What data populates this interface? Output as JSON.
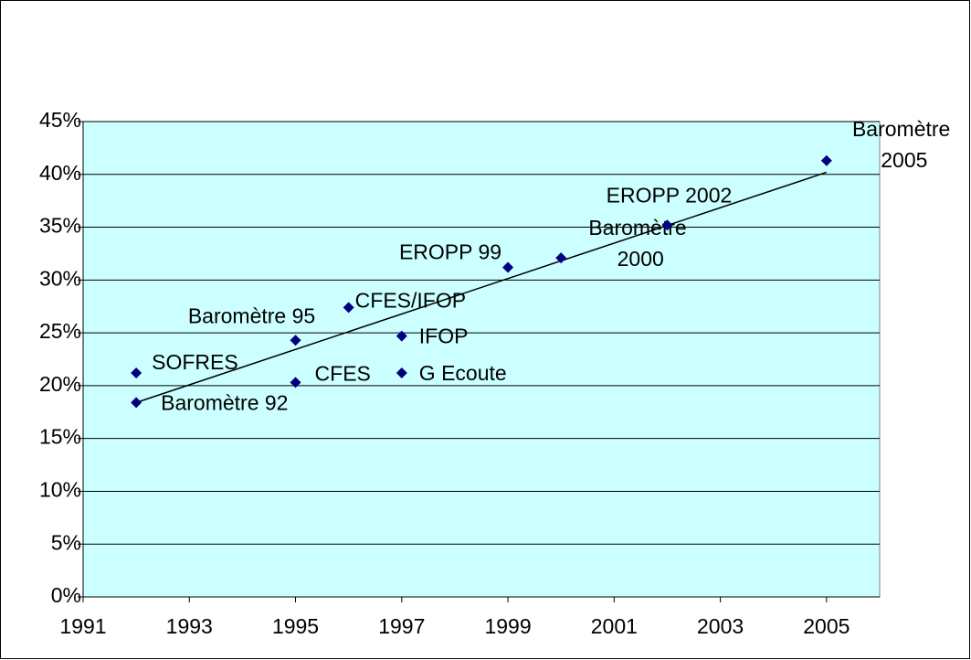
{
  "chart_data": {
    "type": "scatter",
    "x": [
      1992,
      1992,
      1995,
      1995,
      1996,
      1997,
      1997,
      1999,
      2000,
      2002,
      2005
    ],
    "values": [
      21.2,
      18.4,
      24.3,
      20.3,
      27.4,
      24.7,
      21.2,
      31.2,
      32.1,
      35.2,
      41.3
    ],
    "labels": [
      "SOFRES",
      "Baromètre 92",
      "Baromètre 95",
      "CFES",
      "CFES/IFOP",
      "IFOP",
      "G Ecoute",
      "EROPP 99",
      "Baromètre 2000",
      "EROPP 2002",
      "Baromètre 2005"
    ],
    "color": "#000080",
    "trendline": {
      "x": [
        1992,
        2005
      ],
      "values": [
        18.4,
        40.2
      ]
    },
    "xlim": [
      1991,
      2006
    ],
    "xticks": [
      1991,
      1993,
      1995,
      1997,
      1999,
      2001,
      2003,
      2005
    ],
    "ylim": [
      0,
      45
    ],
    "yticks": [
      {
        "value": 0,
        "label": "0%"
      },
      {
        "value": 5,
        "label": "5%"
      },
      {
        "value": 10,
        "label": "10%"
      },
      {
        "value": 15,
        "label": "15%"
      },
      {
        "value": 20,
        "label": "20%"
      },
      {
        "value": 25,
        "label": "25%"
      },
      {
        "value": 30,
        "label": "30%"
      },
      {
        "value": 35,
        "label": "35%"
      },
      {
        "value": 40,
        "label": "40%"
      },
      {
        "value": 45,
        "label": "45%"
      }
    ],
    "grid": true,
    "plot_background": "#ccffff"
  }
}
